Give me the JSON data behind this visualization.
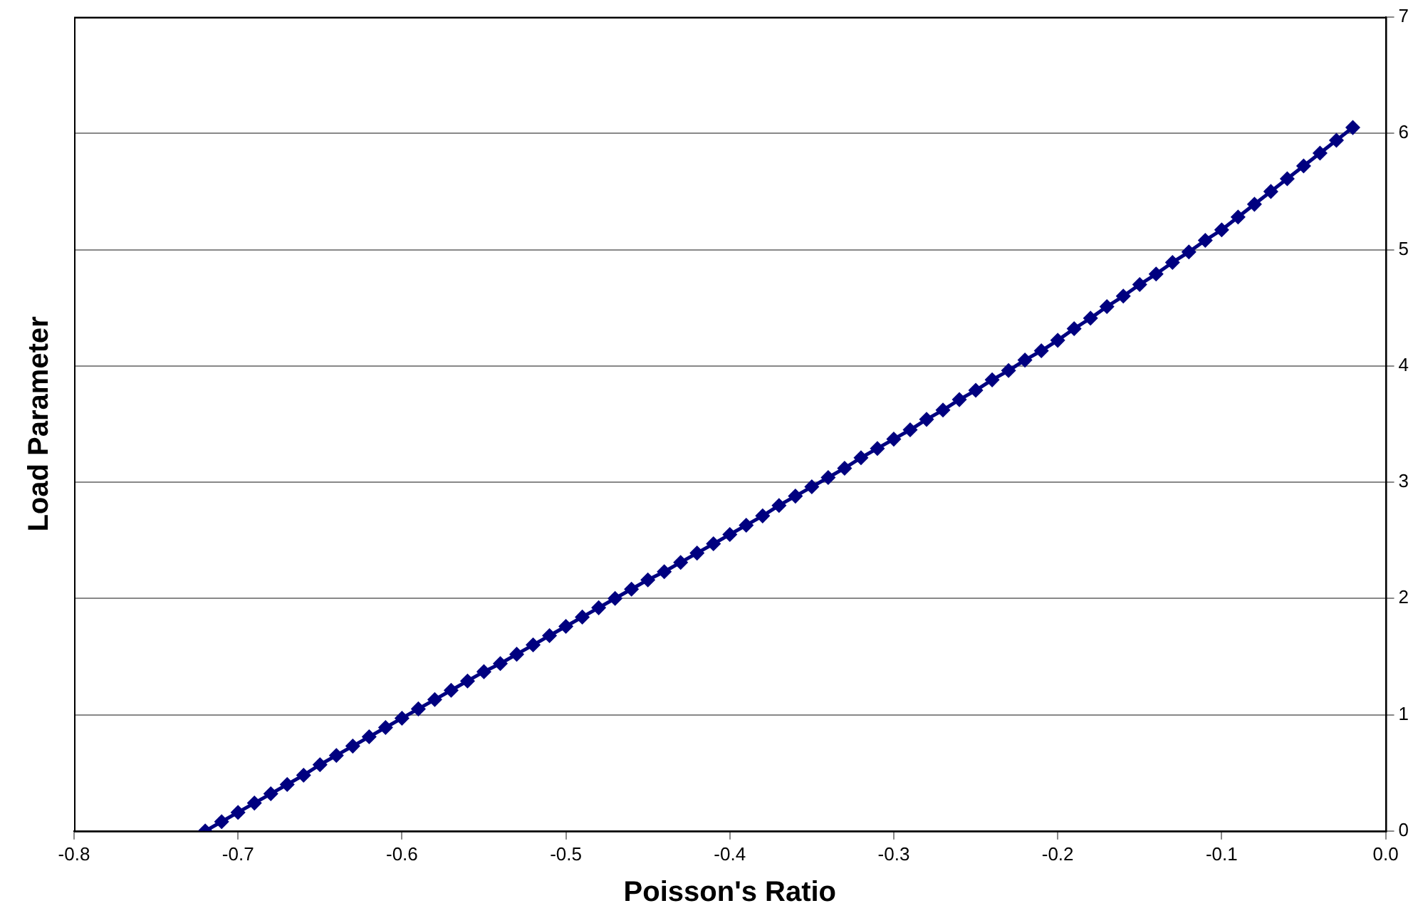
{
  "chart_data": {
    "type": "line",
    "xlabel": "Poisson's Ratio",
    "ylabel": "Load Parameter",
    "x": [
      -0.72,
      -0.71,
      -0.7,
      -0.69,
      -0.68,
      -0.67,
      -0.66,
      -0.65,
      -0.64,
      -0.63,
      -0.62,
      -0.61,
      -0.6,
      -0.59,
      -0.58,
      -0.57,
      -0.56,
      -0.55,
      -0.54,
      -0.53,
      -0.52,
      -0.51,
      -0.5,
      -0.49,
      -0.48,
      -0.47,
      -0.46,
      -0.45,
      -0.44,
      -0.43,
      -0.42,
      -0.41,
      -0.4,
      -0.39,
      -0.38,
      -0.37,
      -0.36,
      -0.35,
      -0.34,
      -0.33,
      -0.32,
      -0.31,
      -0.3,
      -0.29,
      -0.28,
      -0.27,
      -0.26,
      -0.25,
      -0.24,
      -0.23,
      -0.22,
      -0.21,
      -0.2,
      -0.19,
      -0.18,
      -0.17,
      -0.16,
      -0.15,
      -0.14,
      -0.13,
      -0.12,
      -0.11,
      -0.1,
      -0.09,
      -0.08,
      -0.07,
      -0.06,
      -0.05,
      -0.04,
      -0.03,
      -0.02
    ],
    "series": [
      {
        "color": "#000080",
        "values": [
          0,
          0.08,
          0.16,
          0.24,
          0.32,
          0.4,
          0.48,
          0.57,
          0.65,
          0.73,
          0.81,
          0.89,
          0.97,
          1.05,
          1.13,
          1.21,
          1.29,
          1.37,
          1.44,
          1.52,
          1.6,
          1.68,
          1.76,
          1.84,
          1.92,
          2.0,
          2.08,
          2.16,
          2.23,
          2.31,
          2.39,
          2.47,
          2.55,
          2.63,
          2.71,
          2.8,
          2.88,
          2.96,
          3.04,
          3.12,
          3.21,
          3.29,
          3.37,
          3.45,
          3.54,
          3.62,
          3.71,
          3.79,
          3.88,
          3.96,
          4.05,
          4.13,
          4.22,
          4.32,
          4.41,
          4.51,
          4.6,
          4.7,
          4.79,
          4.89,
          4.98,
          5.08,
          5.17,
          5.28,
          5.39,
          5.5,
          5.61,
          5.72,
          5.83,
          5.94,
          6.05
        ]
      }
    ],
    "xlim": [
      -0.8,
      0
    ],
    "xticks": [
      -0.8,
      -0.7,
      -0.6,
      -0.5,
      -0.4,
      -0.3,
      -0.2,
      -0.1,
      {
        "value": 0,
        "label": "0.0"
      }
    ],
    "ylim": [
      0,
      7
    ],
    "yticks": [
      0,
      1,
      2,
      3,
      4,
      5,
      6,
      7
    ],
    "grid": "y",
    "legend": false,
    "marker": "diamond",
    "line_style": "solid"
  }
}
